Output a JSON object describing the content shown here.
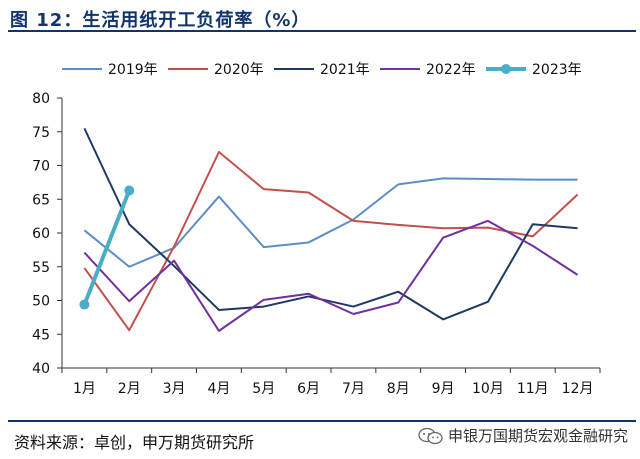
{
  "header": {
    "title": "图 12：生活用纸开工负荷率（%）"
  },
  "footer": {
    "source": "资料来源：卓创，申万期货研究所",
    "watermark": "申银万国期货宏观金融研究"
  },
  "chart_data": {
    "type": "line",
    "title": "图 12：生活用纸开工负荷率（%）",
    "xlabel": "",
    "ylabel": "",
    "categories": [
      "1月",
      "2月",
      "3月",
      "4月",
      "5月",
      "6月",
      "7月",
      "8月",
      "9月",
      "10月",
      "11月",
      "12月"
    ],
    "ylim": [
      40,
      80
    ],
    "yticks": [
      40,
      45,
      50,
      55,
      60,
      65,
      70,
      75,
      80
    ],
    "legend_position": "top",
    "series": [
      {
        "name": "2019年",
        "color": "#5b8ec9",
        "width": 2,
        "marker": false,
        "values": [
          60.4,
          55.0,
          57.8,
          65.4,
          57.9,
          58.6,
          62.0,
          67.2,
          68.1,
          68.0,
          67.9,
          67.9
        ]
      },
      {
        "name": "2020年",
        "color": "#c0504d",
        "width": 2,
        "marker": false,
        "values": [
          54.8,
          45.6,
          58.0,
          72.0,
          66.5,
          66.0,
          61.8,
          61.2,
          60.7,
          60.8,
          59.5,
          65.7
        ]
      },
      {
        "name": "2021年",
        "color": "#1f3a60",
        "width": 2,
        "marker": false,
        "values": [
          75.5,
          61.3,
          55.1,
          48.6,
          49.1,
          50.6,
          49.1,
          51.3,
          47.2,
          49.8,
          61.3,
          60.7
        ]
      },
      {
        "name": "2022年",
        "color": "#7030a0",
        "width": 2,
        "marker": false,
        "values": [
          57.1,
          49.9,
          55.9,
          45.5,
          50.1,
          51.0,
          48.0,
          49.7,
          59.3,
          61.8,
          58.1,
          53.8
        ]
      },
      {
        "name": "2023年",
        "color": "#4bacc6",
        "width": 4,
        "marker": true,
        "values": [
          49.4,
          66.3,
          null,
          null,
          null,
          null,
          null,
          null,
          null,
          null,
          null,
          null
        ]
      }
    ]
  }
}
